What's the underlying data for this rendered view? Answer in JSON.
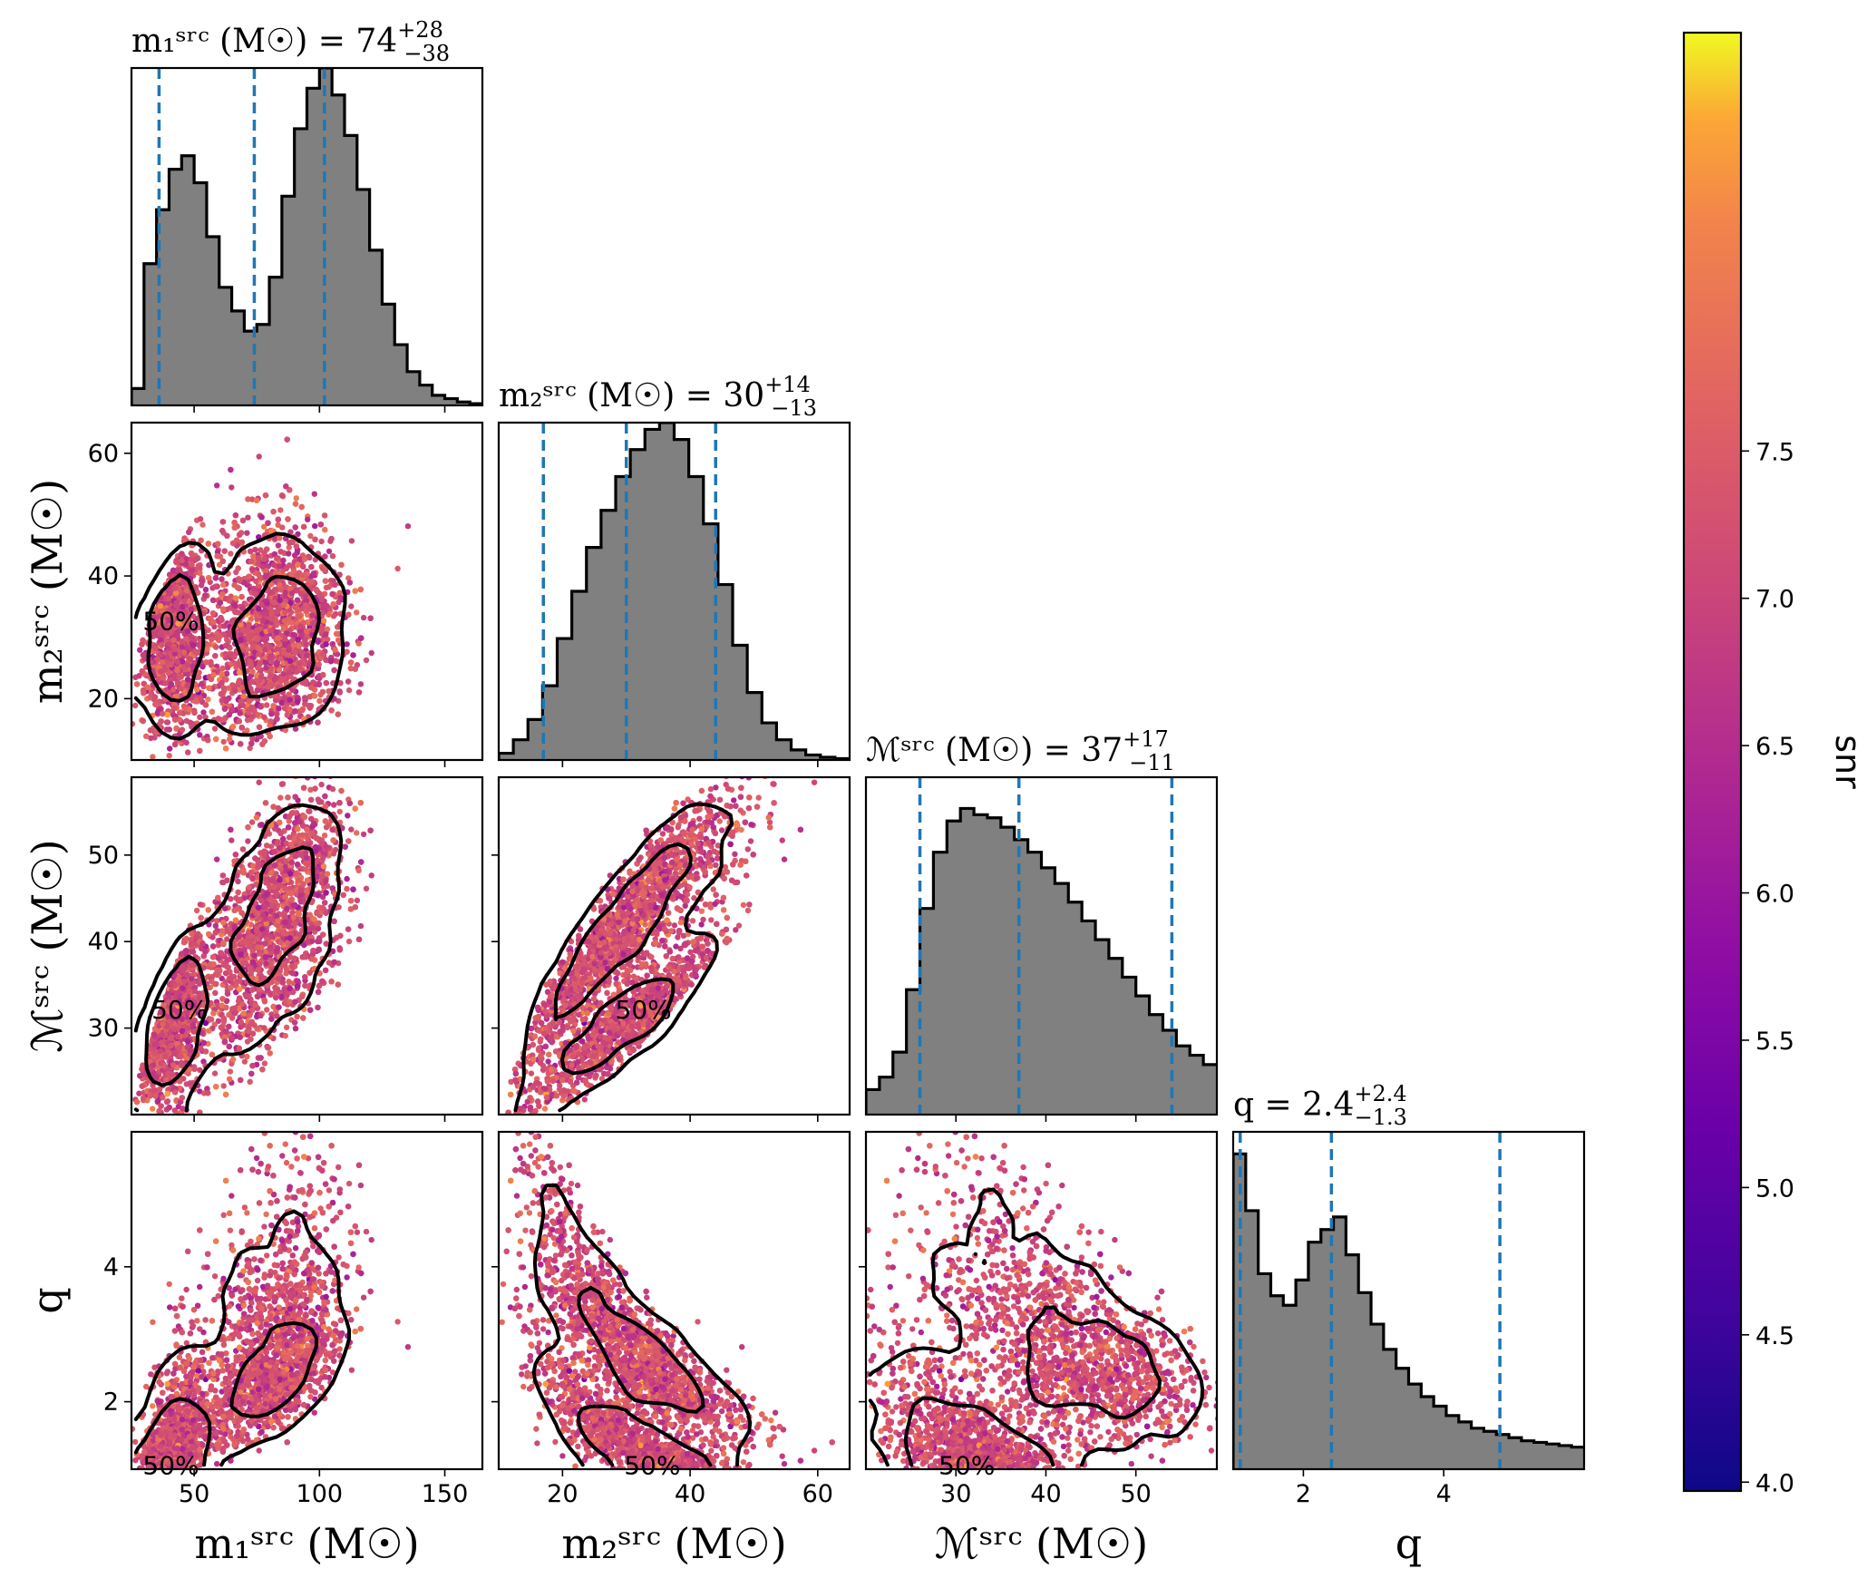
{
  "chart_data": {
    "type": "corner",
    "parameters": [
      {
        "key": "m1",
        "title_text": "m₁ˢʳᶜ (M☉) = 74",
        "median": "74",
        "plus": "+28",
        "minus": "−38",
        "label": "m₁ˢʳᶜ (M☉)",
        "range": [
          25,
          165
        ],
        "ticks": [
          50,
          100,
          150
        ],
        "quantiles": [
          36,
          74,
          102
        ]
      },
      {
        "key": "m2",
        "title_text": "m₂ˢʳᶜ (M☉) = 30",
        "median": "30",
        "plus": "+14",
        "minus": "−13",
        "label": "m₂ˢʳᶜ (M☉)",
        "range": [
          10,
          65
        ],
        "ticks": [
          20,
          40,
          60
        ],
        "quantiles": [
          17,
          30,
          44
        ]
      },
      {
        "key": "mc",
        "title_text": "ℳˢʳᶜ (M☉) = 37",
        "median": "37",
        "plus": "+17",
        "minus": "−11",
        "label": "ℳˢʳᶜ (M☉)",
        "range": [
          20,
          59
        ],
        "ticks": [
          30,
          40,
          50
        ],
        "quantiles": [
          26,
          37,
          54
        ]
      },
      {
        "key": "q",
        "title_text": "q = 2.4",
        "median": "2.4",
        "plus": "+2.4",
        "minus": "−1.3",
        "label": "q",
        "range": [
          1,
          6
        ],
        "ticks": [
          2,
          4
        ],
        "quantiles": [
          1.1,
          2.4,
          4.8
        ]
      }
    ],
    "y_ticks": {
      "m2": [
        20,
        40,
        60
      ],
      "mc": [
        30,
        40,
        50
      ],
      "q": [
        2,
        4
      ]
    },
    "histograms": {
      "m1": [
        0.05,
        0.42,
        0.58,
        0.7,
        0.74,
        0.66,
        0.5,
        0.35,
        0.28,
        0.22,
        0.24,
        0.38,
        0.62,
        0.82,
        0.94,
        1.0,
        0.92,
        0.8,
        0.64,
        0.46,
        0.3,
        0.18,
        0.1,
        0.06,
        0.03,
        0.02,
        0.01,
        0.005
      ],
      "m2": [
        0.02,
        0.06,
        0.12,
        0.22,
        0.36,
        0.5,
        0.63,
        0.74,
        0.84,
        0.92,
        0.98,
        1.0,
        0.95,
        0.84,
        0.7,
        0.52,
        0.34,
        0.2,
        0.11,
        0.06,
        0.03,
        0.015,
        0.008,
        0.004
      ],
      "mc": [
        0.08,
        0.12,
        0.2,
        0.4,
        0.66,
        0.84,
        0.94,
        0.98,
        0.96,
        0.95,
        0.92,
        0.88,
        0.84,
        0.79,
        0.74,
        0.68,
        0.62,
        0.56,
        0.5,
        0.44,
        0.38,
        0.32,
        0.27,
        0.22,
        0.19,
        0.16
      ],
      "q": [
        1.0,
        0.82,
        0.62,
        0.55,
        0.52,
        0.6,
        0.72,
        0.76,
        0.8,
        0.68,
        0.56,
        0.46,
        0.38,
        0.32,
        0.27,
        0.23,
        0.2,
        0.17,
        0.15,
        0.13,
        0.12,
        0.11,
        0.1,
        0.09,
        0.085,
        0.08,
        0.075,
        0.07
      ]
    },
    "hist_ymax": {
      "m1": 1.0,
      "m2": 1.0,
      "mc": 1.08,
      "q": 1.07
    },
    "contour_levels": [
      "50%",
      "90%"
    ],
    "scatter_colormap": "plasma",
    "colorbar": {
      "label": "snr",
      "range": [
        3.97,
        8.92
      ],
      "ticks": [
        4.0,
        4.5,
        5.0,
        5.5,
        6.0,
        6.5,
        7.0,
        7.5
      ]
    },
    "hist_fill": "#808080",
    "quantile_color": "#1f77b4"
  }
}
